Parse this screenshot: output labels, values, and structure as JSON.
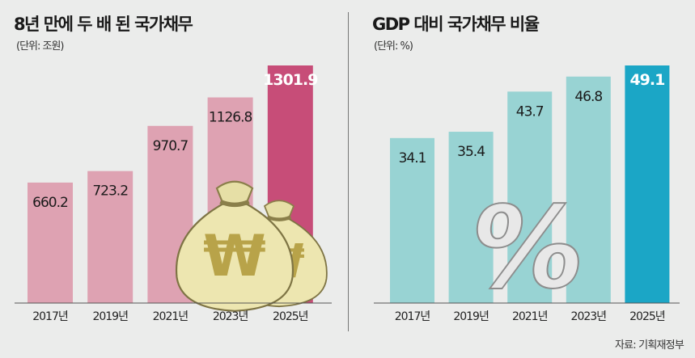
{
  "chart_data": [
    {
      "type": "bar",
      "title": "8년 만에 두 배 된 국가채무",
      "unit_label": "(단위: 조원)",
      "categories": [
        "2017년",
        "2019년",
        "2021년",
        "2023년",
        "2025년"
      ],
      "values": [
        660.2,
        723.2,
        970.7,
        1126.8,
        1301.9
      ],
      "value_labels": [
        "660.2",
        "723.2",
        "970.7",
        "1126.8",
        "1301.9"
      ],
      "ylim": [
        0,
        1301.9
      ],
      "grid": false,
      "colors": {
        "bar": "#dea2b2",
        "highlight": "#c74d78"
      },
      "decoration": "money-bag-icon"
    },
    {
      "type": "bar",
      "title": "GDP 대비 국가채무 비율",
      "unit_label": "(단위: %)",
      "categories": [
        "2017년",
        "2019년",
        "2021년",
        "2023년",
        "2025년"
      ],
      "values": [
        34.1,
        35.4,
        43.7,
        46.8,
        49.1
      ],
      "value_labels": [
        "34.1",
        "35.4",
        "43.7",
        "46.8",
        "49.1"
      ],
      "ylim": [
        0,
        49.1
      ],
      "grid": false,
      "colors": {
        "bar": "#98d3d3",
        "highlight": "#1ba6c6"
      },
      "decoration": "percent-icon"
    }
  ],
  "source": "자료: 기획재정부"
}
